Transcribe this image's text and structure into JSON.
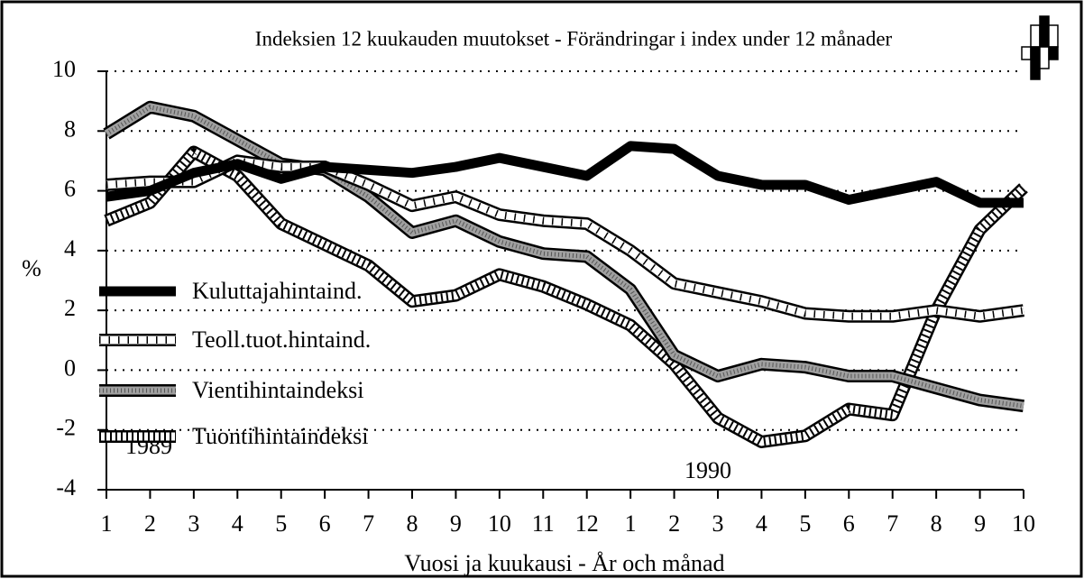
{
  "chart_data": {
    "type": "line",
    "title": "Indeksien 12 kuukauden muutokset  -  Förändringar i index under 12 månader",
    "xlabel": "Vuosi ja kuukausi - År och månad",
    "ylabel": "%",
    "annotations": [
      "1989",
      "1990"
    ],
    "categories": [
      "1",
      "2",
      "3",
      "4",
      "5",
      "6",
      "7",
      "8",
      "9",
      "10",
      "11",
      "12",
      "1",
      "2",
      "3",
      "4",
      "5",
      "6",
      "7",
      "8",
      "9",
      "10"
    ],
    "ylim": [
      -4,
      10
    ],
    "yticks": [
      -4,
      -2,
      0,
      2,
      4,
      6,
      8,
      10
    ],
    "grid": true,
    "legend": "left",
    "series": [
      {
        "name": "Kuluttajahintaind.",
        "color": "#000000",
        "values": [
          5.8,
          6.0,
          6.6,
          6.9,
          6.4,
          6.8,
          6.7,
          6.6,
          6.8,
          7.1,
          6.8,
          6.5,
          7.5,
          7.4,
          6.5,
          6.2,
          6.2,
          5.7,
          6.0,
          6.3,
          5.6,
          5.6
        ]
      },
      {
        "name": "Teoll.tuot.hintaind.",
        "color": "#ffffff",
        "values": [
          6.2,
          6.3,
          6.3,
          7.0,
          6.8,
          6.8,
          6.2,
          5.5,
          5.8,
          5.2,
          5.0,
          4.9,
          4.0,
          2.9,
          2.6,
          2.3,
          1.9,
          1.8,
          1.8,
          2.0,
          1.8,
          2.0
        ]
      },
      {
        "name": "Vientihintaindeksi",
        "color": "#a0a0a0",
        "values": [
          7.9,
          8.8,
          8.5,
          7.7,
          6.9,
          6.7,
          5.8,
          4.6,
          5.0,
          4.3,
          3.9,
          3.8,
          2.7,
          0.5,
          -0.2,
          0.2,
          0.1,
          -0.2,
          -0.2,
          -0.6,
          -1.0,
          -1.2
        ]
      },
      {
        "name": "Tuontihintaindeksi",
        "color": "#ffffff",
        "values": [
          5.0,
          5.6,
          7.3,
          6.5,
          4.9,
          4.2,
          3.5,
          2.3,
          2.5,
          3.2,
          2.8,
          2.2,
          1.5,
          0.2,
          -1.6,
          -2.4,
          -2.2,
          -1.3,
          -1.5,
          2.0,
          4.7,
          6.1
        ]
      }
    ]
  }
}
